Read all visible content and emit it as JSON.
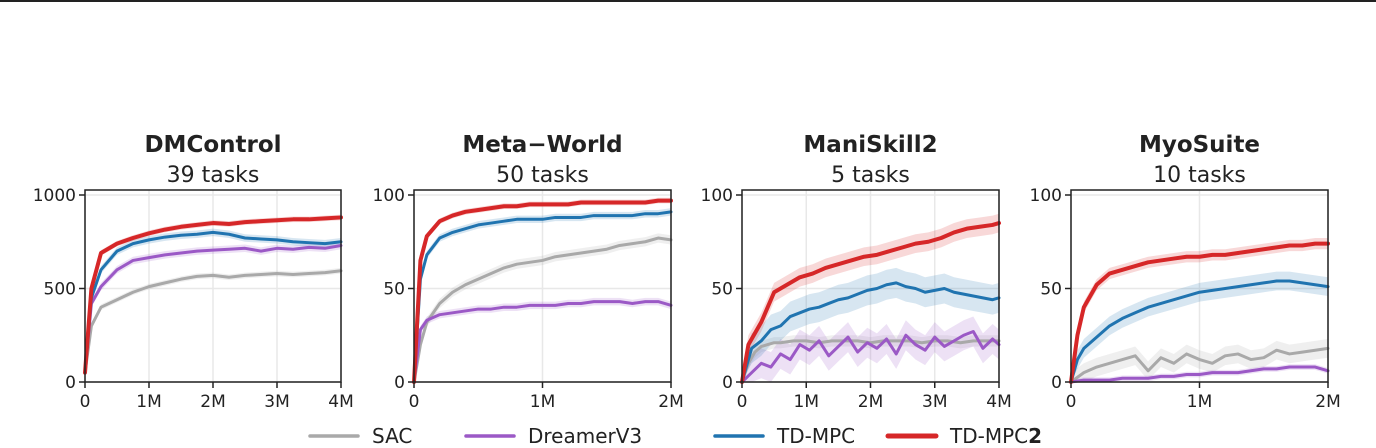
{
  "colors": {
    "SAC": "#a9a9a9",
    "DreamerV3": "#9b59c6",
    "TD-MPC": "#2074b0",
    "TD-MPC2": "#d62728"
  },
  "legend": [
    {
      "label": "SAC",
      "bold_suffix": ""
    },
    {
      "label": "DreamerV3",
      "bold_suffix": ""
    },
    {
      "label": "TD-MPC",
      "bold_suffix": ""
    },
    {
      "label": "TD-MPC",
      "bold_suffix": "2"
    }
  ],
  "chart_data": [
    {
      "type": "line",
      "title": "DMControl",
      "subtitle": "39 tasks",
      "xlim": [
        0,
        4000000
      ],
      "ylim": [
        0,
        1000
      ],
      "xticks": [
        0,
        1000000,
        2000000,
        3000000,
        4000000
      ],
      "xticklabels": [
        "0",
        "1M",
        "2M",
        "3M",
        "4M"
      ],
      "yticks": [
        0,
        500,
        1000
      ],
      "yticklabels": [
        "0",
        "500",
        "1000"
      ],
      "grid": true,
      "series": [
        {
          "name": "SAC",
          "band": 15,
          "x": [
            0,
            0.1,
            0.25,
            0.5,
            0.75,
            1,
            1.25,
            1.5,
            1.75,
            2,
            2.25,
            2.5,
            2.75,
            3,
            3.25,
            3.5,
            3.75,
            4
          ],
          "y": [
            50,
            300,
            400,
            440,
            480,
            510,
            530,
            550,
            565,
            570,
            560,
            570,
            575,
            580,
            575,
            580,
            585,
            595
          ]
        },
        {
          "name": "DreamerV3",
          "band": 20,
          "x": [
            0,
            0.1,
            0.25,
            0.5,
            0.75,
            1,
            1.25,
            1.5,
            1.75,
            2,
            2.25,
            2.5,
            2.75,
            3,
            3.25,
            3.5,
            3.75,
            4
          ],
          "y": [
            50,
            420,
            510,
            600,
            650,
            665,
            680,
            690,
            700,
            705,
            710,
            715,
            700,
            715,
            710,
            720,
            715,
            730
          ]
        },
        {
          "name": "TD-MPC",
          "band": 20,
          "x": [
            0,
            0.1,
            0.25,
            0.5,
            0.75,
            1,
            1.25,
            1.5,
            1.75,
            2,
            2.25,
            2.5,
            2.75,
            3,
            3.25,
            3.5,
            3.75,
            4
          ],
          "y": [
            50,
            450,
            600,
            700,
            740,
            760,
            775,
            785,
            790,
            800,
            790,
            770,
            765,
            760,
            750,
            745,
            740,
            750
          ]
        },
        {
          "name": "TD-MPC2",
          "band": 15,
          "x": [
            0,
            0.1,
            0.25,
            0.5,
            0.75,
            1,
            1.25,
            1.5,
            1.75,
            2,
            2.25,
            2.5,
            2.75,
            3,
            3.25,
            3.5,
            3.75,
            4
          ],
          "y": [
            50,
            500,
            690,
            740,
            770,
            795,
            815,
            830,
            840,
            850,
            845,
            855,
            860,
            865,
            870,
            870,
            875,
            880
          ]
        }
      ]
    },
    {
      "type": "line",
      "title": "Meta−World",
      "subtitle": "50 tasks",
      "xlim": [
        0,
        2000000
      ],
      "ylim": [
        0,
        100
      ],
      "xticks": [
        0,
        1000000,
        2000000
      ],
      "xticklabels": [
        "0",
        "1M",
        "2M"
      ],
      "yticks": [
        0,
        50,
        100
      ],
      "yticklabels": [
        "0",
        "50",
        "100"
      ],
      "grid": true,
      "series": [
        {
          "name": "SAC",
          "band": 2.5,
          "x": [
            0,
            0.05,
            0.1,
            0.2,
            0.3,
            0.4,
            0.5,
            0.6,
            0.7,
            0.8,
            0.9,
            1.0,
            1.1,
            1.2,
            1.3,
            1.4,
            1.5,
            1.6,
            1.7,
            1.8,
            1.9,
            2.0
          ],
          "y": [
            0,
            20,
            32,
            42,
            48,
            52,
            55,
            58,
            61,
            63,
            64,
            65,
            67,
            68,
            69,
            70,
            71,
            73,
            74,
            75,
            77,
            76
          ]
        },
        {
          "name": "DreamerV3",
          "band": 2,
          "x": [
            0,
            0.05,
            0.1,
            0.2,
            0.3,
            0.4,
            0.5,
            0.6,
            0.7,
            0.8,
            0.9,
            1.0,
            1.1,
            1.2,
            1.3,
            1.4,
            1.5,
            1.6,
            1.7,
            1.8,
            1.9,
            2.0
          ],
          "y": [
            0,
            28,
            33,
            36,
            37,
            38,
            39,
            39,
            40,
            40,
            41,
            41,
            41,
            42,
            42,
            43,
            43,
            43,
            42,
            43,
            43,
            41
          ]
        },
        {
          "name": "TD-MPC",
          "band": 2,
          "x": [
            0,
            0.05,
            0.1,
            0.2,
            0.3,
            0.4,
            0.5,
            0.6,
            0.7,
            0.8,
            0.9,
            1.0,
            1.1,
            1.2,
            1.3,
            1.4,
            1.5,
            1.6,
            1.7,
            1.8,
            1.9,
            2.0
          ],
          "y": [
            0,
            55,
            68,
            77,
            80,
            82,
            84,
            85,
            86,
            87,
            87,
            87,
            88,
            88,
            88,
            89,
            89,
            89,
            89,
            90,
            90,
            91
          ]
        },
        {
          "name": "TD-MPC2",
          "band": 1.5,
          "x": [
            0,
            0.05,
            0.1,
            0.2,
            0.3,
            0.4,
            0.5,
            0.6,
            0.7,
            0.8,
            0.9,
            1.0,
            1.1,
            1.2,
            1.3,
            1.4,
            1.5,
            1.6,
            1.7,
            1.8,
            1.9,
            2.0
          ],
          "y": [
            0,
            65,
            78,
            86,
            89,
            91,
            92,
            93,
            94,
            94,
            95,
            95,
            95,
            95,
            96,
            96,
            96,
            96,
            96,
            96,
            97,
            97
          ]
        }
      ]
    },
    {
      "type": "line",
      "title": "ManiSkill2",
      "subtitle": "5 tasks",
      "xlim": [
        0,
        4000000
      ],
      "ylim": [
        0,
        100
      ],
      "xticks": [
        0,
        1000000,
        2000000,
        3000000,
        4000000
      ],
      "xticklabels": [
        "0",
        "1M",
        "2M",
        "3M",
        "4M"
      ],
      "yticks": [
        0,
        50,
        100
      ],
      "yticklabels": [
        "0",
        "50",
        "100"
      ],
      "grid": true,
      "series": [
        {
          "name": "SAC",
          "band": 3,
          "x": [
            0,
            0.1,
            0.2,
            0.3,
            0.4,
            0.5,
            0.6,
            0.8,
            1.0,
            1.2,
            1.4,
            1.6,
            1.8,
            2.0,
            2.2,
            2.4,
            2.6,
            2.8,
            3.0,
            3.2,
            3.4,
            3.6,
            3.8,
            4.0
          ],
          "y": [
            0,
            10,
            16,
            19,
            20,
            21,
            21,
            22,
            22,
            21,
            22,
            22,
            22,
            21,
            22,
            22,
            22,
            21,
            22,
            22,
            21,
            22,
            22,
            22
          ]
        },
        {
          "name": "DreamerV3",
          "band": 8,
          "x": [
            0,
            0.15,
            0.3,
            0.45,
            0.6,
            0.75,
            0.9,
            1.05,
            1.2,
            1.35,
            1.5,
            1.65,
            1.8,
            1.95,
            2.1,
            2.25,
            2.4,
            2.55,
            2.7,
            2.85,
            3.0,
            3.15,
            3.3,
            3.45,
            3.6,
            3.75,
            3.9,
            4.0
          ],
          "y": [
            0,
            5,
            10,
            8,
            15,
            12,
            20,
            17,
            22,
            14,
            19,
            24,
            16,
            21,
            18,
            23,
            15,
            25,
            20,
            17,
            24,
            19,
            22,
            25,
            27,
            18,
            23,
            20
          ]
        },
        {
          "name": "TD-MPC",
          "band": 8,
          "x": [
            0,
            0.15,
            0.3,
            0.45,
            0.6,
            0.75,
            0.9,
            1.05,
            1.2,
            1.35,
            1.5,
            1.65,
            1.8,
            1.95,
            2.1,
            2.25,
            2.4,
            2.55,
            2.7,
            2.85,
            3.0,
            3.15,
            3.3,
            3.45,
            3.6,
            3.75,
            3.9,
            4.0
          ],
          "y": [
            0,
            18,
            22,
            28,
            30,
            35,
            37,
            39,
            40,
            42,
            44,
            45,
            47,
            49,
            50,
            52,
            53,
            51,
            50,
            48,
            49,
            50,
            48,
            47,
            46,
            45,
            44,
            45
          ]
        },
        {
          "name": "TD-MPC2",
          "band": 5,
          "x": [
            0,
            0.1,
            0.3,
            0.5,
            0.7,
            0.9,
            1.1,
            1.3,
            1.5,
            1.7,
            1.9,
            2.1,
            2.3,
            2.5,
            2.7,
            2.9,
            3.1,
            3.3,
            3.5,
            3.7,
            3.9,
            4.0
          ],
          "y": [
            0,
            20,
            32,
            48,
            52,
            56,
            58,
            61,
            63,
            65,
            67,
            68,
            70,
            72,
            74,
            75,
            77,
            80,
            82,
            83,
            84,
            85
          ]
        }
      ]
    },
    {
      "type": "line",
      "title": "MyoSuite",
      "subtitle": "10 tasks",
      "xlim": [
        0,
        2000000
      ],
      "ylim": [
        0,
        100
      ],
      "xticks": [
        0,
        1000000,
        2000000
      ],
      "xticklabels": [
        "0",
        "1M",
        "2M"
      ],
      "yticks": [
        0,
        50,
        100
      ],
      "yticklabels": [
        "0",
        "50",
        "100"
      ],
      "grid": true,
      "series": [
        {
          "name": "SAC",
          "band": 5,
          "x": [
            0,
            0.1,
            0.2,
            0.3,
            0.4,
            0.5,
            0.6,
            0.7,
            0.8,
            0.9,
            1.0,
            1.1,
            1.2,
            1.3,
            1.4,
            1.5,
            1.6,
            1.7,
            1.8,
            1.9,
            2.0
          ],
          "y": [
            0,
            5,
            8,
            10,
            12,
            14,
            6,
            13,
            10,
            15,
            12,
            10,
            14,
            15,
            12,
            13,
            17,
            15,
            16,
            17,
            18
          ]
        },
        {
          "name": "DreamerV3",
          "band": 1.5,
          "x": [
            0,
            0.1,
            0.2,
            0.3,
            0.4,
            0.5,
            0.6,
            0.7,
            0.8,
            0.9,
            1.0,
            1.1,
            1.2,
            1.3,
            1.4,
            1.5,
            1.6,
            1.7,
            1.8,
            1.9,
            2.0
          ],
          "y": [
            0,
            1,
            1,
            1,
            2,
            2,
            2,
            3,
            3,
            4,
            4,
            5,
            5,
            5,
            6,
            7,
            7,
            8,
            8,
            8,
            6
          ]
        },
        {
          "name": "TD-MPC",
          "band": 5,
          "x": [
            0,
            0.05,
            0.1,
            0.2,
            0.3,
            0.4,
            0.5,
            0.6,
            0.7,
            0.8,
            0.9,
            1.0,
            1.1,
            1.2,
            1.3,
            1.4,
            1.5,
            1.6,
            1.7,
            1.8,
            1.9,
            2.0
          ],
          "y": [
            0,
            12,
            18,
            24,
            30,
            34,
            37,
            40,
            42,
            44,
            46,
            48,
            49,
            50,
            51,
            52,
            53,
            54,
            54,
            53,
            52,
            51
          ]
        },
        {
          "name": "TD-MPC2",
          "band": 3,
          "x": [
            0,
            0.05,
            0.1,
            0.2,
            0.3,
            0.4,
            0.5,
            0.6,
            0.7,
            0.8,
            0.9,
            1.0,
            1.1,
            1.2,
            1.3,
            1.4,
            1.5,
            1.6,
            1.7,
            1.8,
            1.9,
            2.0
          ],
          "y": [
            0,
            25,
            40,
            52,
            58,
            60,
            62,
            64,
            65,
            66,
            67,
            67,
            68,
            68,
            69,
            70,
            71,
            72,
            73,
            73,
            74,
            74
          ]
        }
      ]
    }
  ]
}
